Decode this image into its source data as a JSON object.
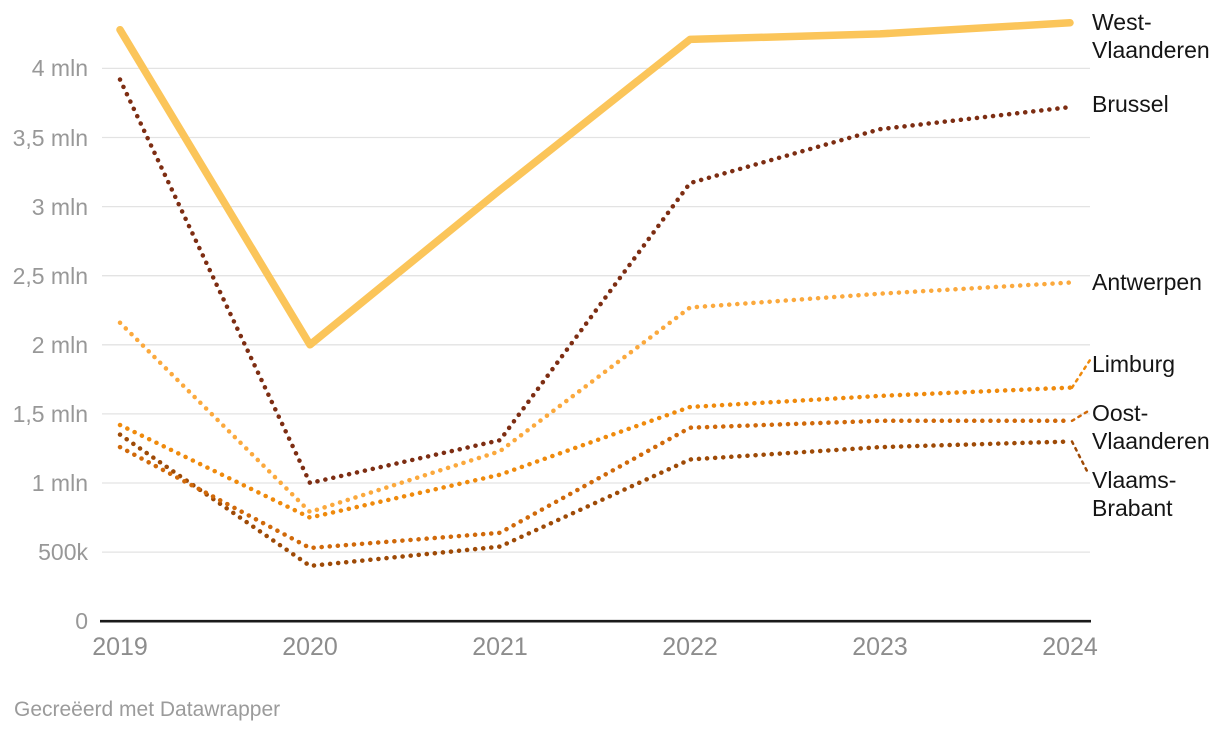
{
  "chart_data": {
    "type": "line",
    "title": "",
    "x": [
      2019,
      2020,
      2021,
      2022,
      2023,
      2024
    ],
    "x_labels": [
      "2019",
      "2020",
      "2021",
      "2022",
      "2023",
      "2024"
    ],
    "y_axis": {
      "unit": "mln",
      "range": [
        0,
        4.35
      ],
      "ticks": [
        {
          "value": 0,
          "label": "0"
        },
        {
          "value": 0.5,
          "label": "500k"
        },
        {
          "value": 1,
          "label": "1 mln"
        },
        {
          "value": 1.5,
          "label": "1,5 mln"
        },
        {
          "value": 2,
          "label": "2 mln"
        },
        {
          "value": 2.5,
          "label": "2,5 mln"
        },
        {
          "value": 3,
          "label": "3 mln"
        },
        {
          "value": 3.5,
          "label": "3,5 mln"
        },
        {
          "value": 4,
          "label": "4 mln"
        }
      ]
    },
    "grid": true,
    "legend_position": "right-edge-labels",
    "series": [
      {
        "name": "West-Vlaanderen",
        "label": "West-\nVlaanderen",
        "color": "#FBC55A",
        "line_style": "solid",
        "values_mln": [
          4.28,
          2.0,
          3.12,
          4.21,
          4.25,
          4.33
        ]
      },
      {
        "name": "Brussel",
        "label": "Brussel",
        "color": "#7D2D12",
        "line_style": "dotted",
        "values_mln": [
          3.92,
          1.0,
          1.31,
          3.17,
          3.56,
          3.72
        ]
      },
      {
        "name": "Antwerpen",
        "label": "Antwerpen",
        "color": "#FBA93D",
        "line_style": "dotted",
        "values_mln": [
          2.16,
          0.79,
          1.23,
          2.27,
          2.37,
          2.45
        ]
      },
      {
        "name": "Limburg",
        "label": "Limburg",
        "color": "#EF8A0C",
        "line_style": "dotted",
        "values_mln": [
          1.42,
          0.75,
          1.06,
          1.55,
          1.63,
          1.69
        ]
      },
      {
        "name": "Oost-Vlaanderen",
        "label": "Oost-\nVlaanderen",
        "color": "#D0690A",
        "line_style": "dotted",
        "values_mln": [
          1.26,
          0.53,
          0.64,
          1.4,
          1.45,
          1.45
        ]
      },
      {
        "name": "Vlaams-Brabant",
        "label": "Vlaams-\nBrabant",
        "color": "#9E4A06",
        "line_style": "dotted",
        "values_mln": [
          1.35,
          0.4,
          0.54,
          1.17,
          1.26,
          1.3
        ]
      }
    ]
  },
  "colors": {
    "background": "#ffffff",
    "grid": "#e3e3e3",
    "axis": "#1a1a1a",
    "y_tick_text": "#989898",
    "x_tick_text": "#8d8d8d",
    "label_text": "#151515",
    "footer_text": "#9b9b9b"
  },
  "footer": {
    "text": "Gecreëerd met Datawrapper"
  }
}
